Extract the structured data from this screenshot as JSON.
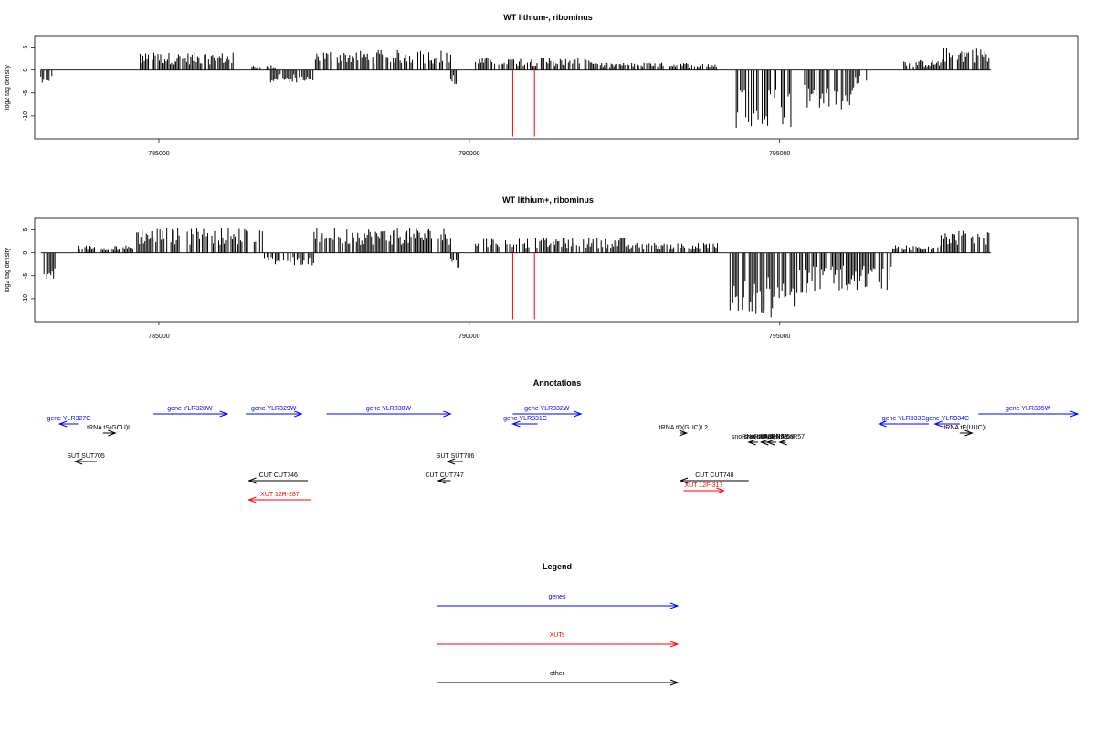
{
  "colors": {
    "gene": "#0000ff",
    "xut": "#ff0000",
    "other": "#000000",
    "marker": "#ff0000"
  },
  "chart_data": [
    {
      "type": "bar",
      "title": "WT lithium-, ribominus",
      "ylabel": "log2 tag density",
      "xlim": [
        783000,
        799800
      ],
      "ylim": [
        -15,
        7.5
      ],
      "yticks": [
        5,
        0,
        -5,
        -10
      ],
      "xticks": [
        785000,
        790000,
        795000
      ],
      "markers": [
        790700,
        791050
      ],
      "segments": [
        {
          "from": 783100,
          "to": 783300,
          "level": -2.5
        },
        {
          "from": 784700,
          "to": 786200,
          "level": 3.5
        },
        {
          "from": 786500,
          "to": 786900,
          "level": 1.0
        },
        {
          "from": 786800,
          "to": 787500,
          "level": -2.5
        },
        {
          "from": 787500,
          "to": 789700,
          "level": 4.0
        },
        {
          "from": 789700,
          "to": 789800,
          "level": -3.0
        },
        {
          "from": 790100,
          "to": 792000,
          "level": 2.5
        },
        {
          "from": 792000,
          "to": 794000,
          "level": 1.5
        },
        {
          "from": 794300,
          "to": 795200,
          "level": -12.0
        },
        {
          "from": 795400,
          "to": 796200,
          "level": -8.0
        },
        {
          "from": 796200,
          "to": 796400,
          "level": -3.5
        },
        {
          "from": 797000,
          "to": 797600,
          "level": 2.0
        },
        {
          "from": 797600,
          "to": 798400,
          "level": 4.5
        }
      ]
    },
    {
      "type": "bar",
      "title": "WT lithium+, ribominus",
      "ylabel": "log2 tag density",
      "xlim": [
        783000,
        799800
      ],
      "ylim": [
        -15,
        7.5
      ],
      "yticks": [
        5,
        0,
        -5,
        -10
      ],
      "xticks": [
        785000,
        790000,
        795000
      ],
      "markers": [
        790700,
        791050
      ],
      "segments": [
        {
          "from": 783150,
          "to": 783350,
          "level": -6.0
        },
        {
          "from": 783700,
          "to": 784600,
          "level": 1.5
        },
        {
          "from": 784600,
          "to": 786700,
          "level": 5.0
        },
        {
          "from": 786700,
          "to": 787500,
          "level": -2.5
        },
        {
          "from": 787500,
          "to": 789700,
          "level": 5.0
        },
        {
          "from": 789700,
          "to": 789850,
          "level": -3.0
        },
        {
          "from": 790100,
          "to": 792500,
          "level": 3.0
        },
        {
          "from": 792500,
          "to": 794000,
          "level": 2.0
        },
        {
          "from": 794200,
          "to": 795300,
          "level": -13.0
        },
        {
          "from": 795300,
          "to": 796800,
          "level": -8.0
        },
        {
          "from": 796800,
          "to": 797600,
          "level": 1.5
        },
        {
          "from": 797600,
          "to": 798400,
          "level": 4.5
        }
      ]
    }
  ],
  "annotations": {
    "title": "Annotations",
    "items": [
      {
        "label": "gene YLR327C",
        "kind": "gene",
        "x1": 783400,
        "x2": 783700,
        "row": 2,
        "dir": "left"
      },
      {
        "label": "gene YLR328W",
        "kind": "gene",
        "x1": 784900,
        "x2": 786100,
        "row": 1,
        "dir": "right"
      },
      {
        "label": "gene YLR329W",
        "kind": "gene",
        "x1": 786400,
        "x2": 787300,
        "row": 1,
        "dir": "right"
      },
      {
        "label": "gene YLR330W",
        "kind": "gene",
        "x1": 787700,
        "x2": 789700,
        "row": 1,
        "dir": "right"
      },
      {
        "label": "gene YLR331C",
        "kind": "gene",
        "x1": 790700,
        "x2": 791100,
        "row": 2,
        "dir": "left"
      },
      {
        "label": "gene YLR332W",
        "kind": "gene",
        "x1": 790700,
        "x2": 791800,
        "row": 1,
        "dir": "right"
      },
      {
        "label": "gene YLR333C",
        "kind": "gene",
        "x1": 796600,
        "x2": 797400,
        "row": 2,
        "dir": "left"
      },
      {
        "label": "gene YLR334C",
        "kind": "gene",
        "x1": 797500,
        "x2": 797900,
        "row": 2,
        "dir": "left"
      },
      {
        "label": "gene YLR335W",
        "kind": "gene",
        "x1": 798200,
        "x2": 799800,
        "row": 1,
        "dir": "right"
      },
      {
        "label": "tRNA tS(GCU)L",
        "kind": "other",
        "x1": 784100,
        "x2": 784300,
        "row": 3,
        "dir": "right"
      },
      {
        "label": "tRNA tD(GUC)L2",
        "kind": "other",
        "x1": 793400,
        "x2": 793500,
        "row": 3,
        "dir": "right"
      },
      {
        "label": "tRNA tE(UUC)L",
        "kind": "other",
        "x1": 797900,
        "x2": 798100,
        "row": 3,
        "dir": "right"
      },
      {
        "label": "snoRNA snR38",
        "kind": "other",
        "x1": 794500,
        "x2": 794650,
        "row": 4,
        "dir": "left"
      },
      {
        "label": "snoRNA snR59",
        "kind": "other",
        "x1": 794700,
        "x2": 794850,
        "row": 4,
        "dir": "left"
      },
      {
        "label": "snoRNA snR58",
        "kind": "other",
        "x1": 794800,
        "x2": 794950,
        "row": 4,
        "dir": "left"
      },
      {
        "label": "snoRNA snR57",
        "kind": "other",
        "x1": 795000,
        "x2": 795100,
        "row": 4,
        "dir": "left"
      },
      {
        "label": "SUT SUT705",
        "kind": "other",
        "x1": 783650,
        "x2": 784000,
        "row": 5,
        "dir": "left"
      },
      {
        "label": "SUT SUT706",
        "kind": "other",
        "x1": 789650,
        "x2": 789900,
        "row": 5,
        "dir": "left"
      },
      {
        "label": "CUT CUT746",
        "kind": "other",
        "x1": 786450,
        "x2": 787400,
        "row": 6,
        "dir": "left"
      },
      {
        "label": "CUT CUT747",
        "kind": "other",
        "x1": 789500,
        "x2": 789700,
        "row": 6,
        "dir": "left"
      },
      {
        "label": "CUT CUT748",
        "kind": "other",
        "x1": 793400,
        "x2": 794500,
        "row": 6,
        "dir": "left"
      },
      {
        "label": "XUT 12F-317",
        "kind": "xut",
        "x1": 793450,
        "x2": 794100,
        "row": 7,
        "dir": "right"
      },
      {
        "label": "XUT 12R-287",
        "kind": "xut",
        "x1": 786450,
        "x2": 787450,
        "row": 8,
        "dir": "left"
      }
    ]
  },
  "legend": {
    "title": "Legend",
    "items": [
      {
        "label": "genes",
        "kind": "gene"
      },
      {
        "label": "XUTs",
        "kind": "xut"
      },
      {
        "label": "other",
        "kind": "other"
      }
    ]
  }
}
